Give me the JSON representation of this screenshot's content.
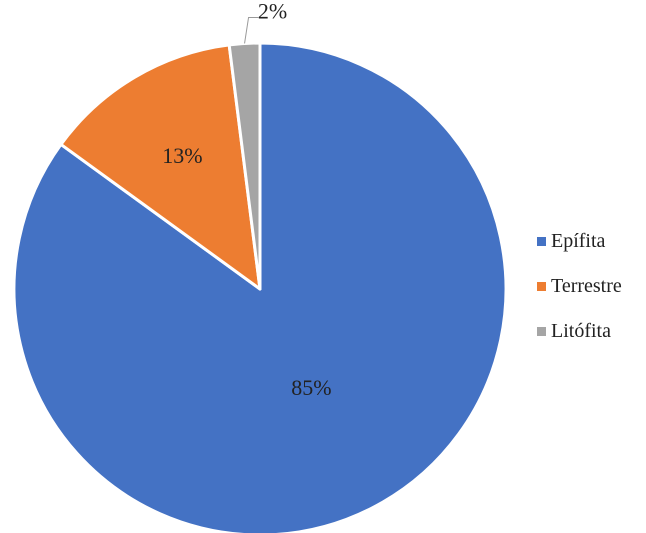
{
  "chart_data": {
    "type": "pie",
    "title": "",
    "categories": [
      "Epífita",
      "Terrestre",
      "Litófita"
    ],
    "values": [
      85,
      13,
      2
    ],
    "labels": [
      "85%",
      "13%",
      "2%"
    ],
    "colors": [
      "#4472C4",
      "#ED7D31",
      "#A5A5A5"
    ],
    "legend_position": "right",
    "start_angle_deg": 0,
    "direction": "clockwise"
  },
  "legend": {
    "items": [
      {
        "label": "Epífita",
        "color": "#4472C4"
      },
      {
        "label": "Terrestre",
        "color": "#ED7D31"
      },
      {
        "label": "Litófita",
        "color": "#A5A5A5"
      }
    ]
  }
}
